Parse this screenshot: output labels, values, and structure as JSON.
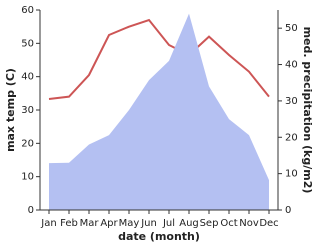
{
  "chart_data": {
    "type": "line-area",
    "x_label": "date (month)",
    "y_label": "max temp (C)",
    "y2_label": "med. precipitation (kg/m2)",
    "categories": [
      "Jan",
      "Feb",
      "Mar",
      "Apr",
      "May",
      "Jun",
      "Jul",
      "Aug",
      "Sep",
      "Oct",
      "Nov",
      "Dec"
    ],
    "series": [
      {
        "name": "max temp",
        "color": "#cd5555",
        "kind": "line",
        "values": [
          33.3,
          34,
          40.5,
          52.5,
          55,
          57,
          49.5,
          46.5,
          52,
          46.5,
          41.5,
          34
        ]
      },
      {
        "name": "med. precipitation",
        "color": "#b4c0f2",
        "kind": "area",
        "axis": "y2",
        "values": [
          12.9,
          13,
          18,
          20.6,
          27.5,
          35.7,
          41,
          54,
          34,
          25,
          20.6,
          8.2
        ]
      }
    ],
    "ylim": [
      0,
      60
    ],
    "yticks": [
      0,
      10,
      20,
      30,
      40,
      50,
      60
    ],
    "y2lim": [
      0,
      55
    ],
    "y2ticks": [
      0,
      10,
      20,
      30,
      40,
      50
    ]
  }
}
